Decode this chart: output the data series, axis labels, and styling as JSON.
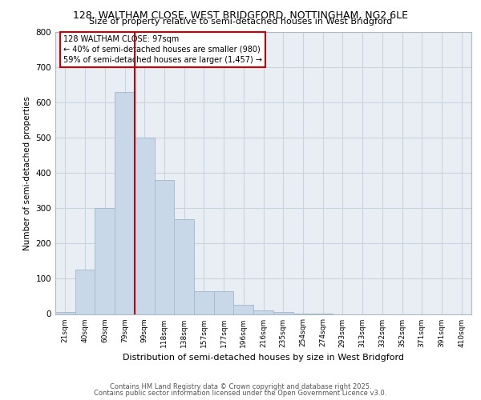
{
  "title_line1": "128, WALTHAM CLOSE, WEST BRIDGFORD, NOTTINGHAM, NG2 6LE",
  "title_line2": "Size of property relative to semi-detached houses in West Bridgford",
  "xlabel": "Distribution of semi-detached houses by size in West Bridgford",
  "ylabel": "Number of semi-detached properties",
  "categories": [
    "21sqm",
    "40sqm",
    "60sqm",
    "79sqm",
    "99sqm",
    "118sqm",
    "138sqm",
    "157sqm",
    "177sqm",
    "196sqm",
    "216sqm",
    "235sqm",
    "254sqm",
    "274sqm",
    "293sqm",
    "313sqm",
    "332sqm",
    "352sqm",
    "371sqm",
    "391sqm",
    "410sqm"
  ],
  "values": [
    5,
    125,
    300,
    630,
    500,
    380,
    270,
    65,
    65,
    25,
    10,
    5,
    2,
    1,
    0,
    0,
    0,
    0,
    0,
    0,
    0
  ],
  "bar_color": "#c8d8e8",
  "bar_edge_color": "#a8bccc",
  "vline_index": 3.5,
  "vline_color": "#cc0000",
  "annotation_title": "128 WALTHAM CLOSE: 97sqm",
  "annotation_line1": "← 40% of semi-detached houses are smaller (980)",
  "annotation_line2": "59% of semi-detached houses are larger (1,457) →",
  "annotation_box_color": "#cc0000",
  "footer_line1": "Contains HM Land Registry data © Crown copyright and database right 2025.",
  "footer_line2": "Contains public sector information licensed under the Open Government Licence v3.0.",
  "ylim": [
    0,
    800
  ],
  "yticks": [
    0,
    100,
    200,
    300,
    400,
    500,
    600,
    700,
    800
  ],
  "grid_color": "#c8d4de",
  "plot_bg_color": "#e8eef4"
}
